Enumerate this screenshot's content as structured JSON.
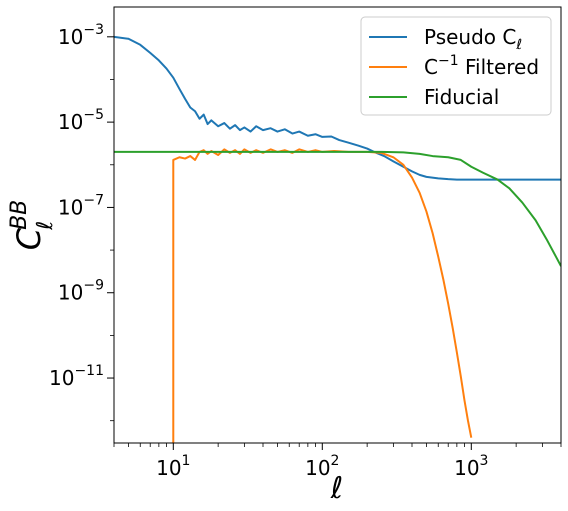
{
  "chart_data": {
    "type": "line",
    "xscale": "log",
    "yscale": "log",
    "xlim": [
      4,
      4000
    ],
    "ylim": [
      3e-13,
      0.005
    ],
    "xlabel": "ℓ",
    "ylabel": "C",
    "ylabel_sup": "BB",
    "ylabel_sub": "ℓ",
    "grid": false,
    "legend_position": "top-right",
    "x_ticks": [
      {
        "value": 10,
        "base": "10",
        "exp": "1"
      },
      {
        "value": 100,
        "base": "10",
        "exp": "2"
      },
      {
        "value": 1000,
        "base": "10",
        "exp": "3"
      }
    ],
    "y_ticks": [
      {
        "value": 0.001,
        "base": "10",
        "exp": "−3"
      },
      {
        "value": 1e-05,
        "base": "10",
        "exp": "−5"
      },
      {
        "value": 1e-07,
        "base": "10",
        "exp": "−7"
      },
      {
        "value": 1e-09,
        "base": "10",
        "exp": "−9"
      },
      {
        "value": 1e-11,
        "base": "10",
        "exp": "−11"
      }
    ],
    "series": [
      {
        "name": "Pseudo C",
        "name_sub": "ℓ",
        "color": "#1f77b4",
        "points": [
          [
            4,
            0.001
          ],
          [
            5,
            0.0009
          ],
          [
            6,
            0.00065
          ],
          [
            7,
            0.00042
          ],
          [
            8,
            0.00028
          ],
          [
            9,
            0.00018
          ],
          [
            10,
            0.00011
          ],
          [
            11,
            6e-05
          ],
          [
            12,
            3.5e-05
          ],
          [
            13,
            2.2e-05
          ],
          [
            14,
            1.8e-05
          ],
          [
            15,
            1.2e-05
          ],
          [
            16,
            1.5e-05
          ],
          [
            17,
            9e-06
          ],
          [
            18,
            1.1e-05
          ],
          [
            20,
            8e-06
          ],
          [
            22,
            9.5e-06
          ],
          [
            24,
            7e-06
          ],
          [
            26,
            8.5e-06
          ],
          [
            28,
            6.5e-06
          ],
          [
            30,
            7.5e-06
          ],
          [
            33,
            6e-06
          ],
          [
            36,
            8e-06
          ],
          [
            40,
            6.5e-06
          ],
          [
            45,
            7.2e-06
          ],
          [
            50,
            6e-06
          ],
          [
            56,
            6.8e-06
          ],
          [
            63,
            5.4e-06
          ],
          [
            70,
            6e-06
          ],
          [
            80,
            4.8e-06
          ],
          [
            90,
            5.2e-06
          ],
          [
            100,
            4.5e-06
          ],
          [
            115,
            4.6e-06
          ],
          [
            130,
            3.8e-06
          ],
          [
            150,
            3.3e-06
          ],
          [
            175,
            2.8e-06
          ],
          [
            200,
            2.4e-06
          ],
          [
            230,
            1.9e-06
          ],
          [
            260,
            1.6e-06
          ],
          [
            300,
            1.2e-06
          ],
          [
            350,
            9e-07
          ],
          [
            400,
            7e-07
          ],
          [
            450,
            5.8e-07
          ],
          [
            500,
            5.2e-07
          ],
          [
            600,
            4.8e-07
          ],
          [
            700,
            4.6e-07
          ],
          [
            800,
            4.5e-07
          ],
          [
            1000,
            4.5e-07
          ],
          [
            1500,
            4.5e-07
          ],
          [
            2000,
            4.5e-07
          ],
          [
            3000,
            4.5e-07
          ],
          [
            4000,
            4.5e-07
          ]
        ]
      },
      {
        "name": "C",
        "name_sup": "−1",
        "name_suffix": " Filtered",
        "color": "#ff7f0e",
        "points": [
          [
            10,
            3e-13
          ],
          [
            10,
            1.3e-06
          ],
          [
            11,
            1.5e-06
          ],
          [
            12,
            1.4e-06
          ],
          [
            13,
            1.6e-06
          ],
          [
            14,
            1.3e-06
          ],
          [
            15,
            2e-06
          ],
          [
            16,
            2.2e-06
          ],
          [
            17,
            1.8e-06
          ],
          [
            18,
            2.1e-06
          ],
          [
            20,
            1.7e-06
          ],
          [
            22,
            2.3e-06
          ],
          [
            24,
            1.9e-06
          ],
          [
            26,
            2.2e-06
          ],
          [
            28,
            1.8e-06
          ],
          [
            30,
            2.3e-06
          ],
          [
            33,
            1.9e-06
          ],
          [
            36,
            2.2e-06
          ],
          [
            40,
            1.9e-06
          ],
          [
            45,
            2.3e-06
          ],
          [
            50,
            2e-06
          ],
          [
            56,
            2.2e-06
          ],
          [
            63,
            1.9e-06
          ],
          [
            70,
            2.3e-06
          ],
          [
            80,
            2e-06
          ],
          [
            90,
            2.2e-06
          ],
          [
            100,
            2e-06
          ],
          [
            120,
            2.1e-06
          ],
          [
            150,
            2e-06
          ],
          [
            200,
            2e-06
          ],
          [
            250,
            1.9e-06
          ],
          [
            300,
            1.5e-06
          ],
          [
            350,
            1e-06
          ],
          [
            400,
            5e-07
          ],
          [
            450,
            2.2e-07
          ],
          [
            500,
            8e-08
          ],
          [
            550,
            2.5e-08
          ],
          [
            600,
            7e-09
          ],
          [
            650,
            2e-09
          ],
          [
            700,
            5.5e-10
          ],
          [
            750,
            1.5e-10
          ],
          [
            800,
            4e-11
          ],
          [
            850,
            1.1e-11
          ],
          [
            900,
            3e-12
          ],
          [
            950,
            1e-12
          ],
          [
            1000,
            4e-13
          ]
        ]
      },
      {
        "name": "Fiducial",
        "color": "#2ca02c",
        "points": [
          [
            4,
            2e-06
          ],
          [
            10,
            2e-06
          ],
          [
            50,
            2e-06
          ],
          [
            150,
            2e-06
          ],
          [
            250,
            2e-06
          ],
          [
            350,
            1.95e-06
          ],
          [
            450,
            1.8e-06
          ],
          [
            550,
            1.6e-06
          ],
          [
            700,
            1.5e-06
          ],
          [
            850,
            1.3e-06
          ],
          [
            1000,
            9e-07
          ],
          [
            1200,
            6.5e-07
          ],
          [
            1500,
            4.5e-07
          ],
          [
            1800,
            2.8e-07
          ],
          [
            2200,
            1.3e-07
          ],
          [
            2700,
            5e-08
          ],
          [
            3200,
            1.8e-08
          ],
          [
            3700,
            7e-09
          ],
          [
            4000,
            4.2e-09
          ]
        ]
      }
    ]
  }
}
